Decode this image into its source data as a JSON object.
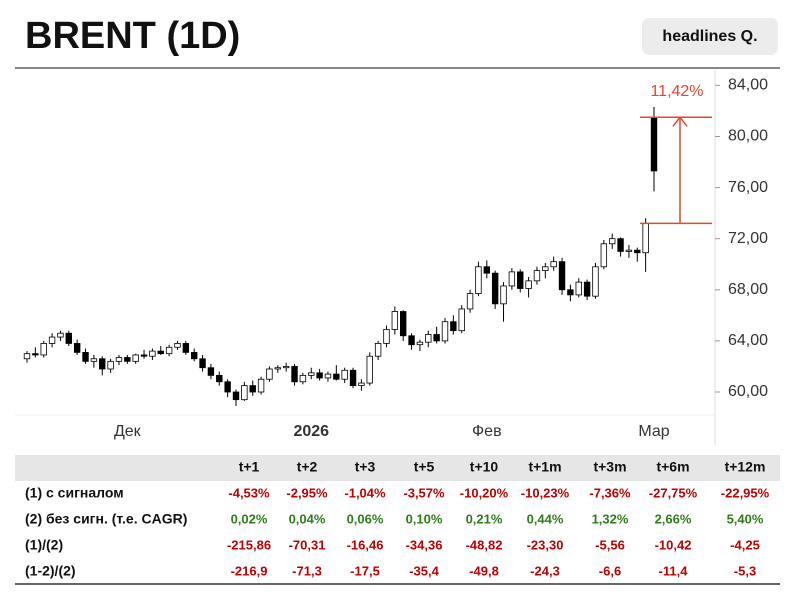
{
  "header": {
    "title": "BRENT (1D)",
    "badge": "headlines Q."
  },
  "chart_data": {
    "type": "candlestick",
    "categories": [
      null,
      null,
      null,
      null,
      null,
      null,
      null,
      null,
      null,
      null,
      null,
      null,
      "Дек",
      null,
      null,
      null,
      null,
      null,
      null,
      null,
      null,
      null,
      null,
      null,
      null,
      null,
      null,
      null,
      null,
      null,
      null,
      null,
      null,
      null,
      "2026",
      null,
      null,
      null,
      null,
      null,
      null,
      null,
      null,
      null,
      null,
      null,
      null,
      null,
      null,
      null,
      null,
      null,
      null,
      null,
      null,
      "Фев",
      null,
      null,
      null,
      null,
      null,
      null,
      null,
      null,
      null,
      null,
      null,
      null,
      null,
      null,
      null,
      null,
      null,
      null,
      null,
      "Мар"
    ],
    "open": [
      62.6,
      63.0,
      62.9,
      63.8,
      64.3,
      64.6,
      63.8,
      63.1,
      62.4,
      62.6,
      61.8,
      62.4,
      62.7,
      62.4,
      62.9,
      62.8,
      63.2,
      63.0,
      63.5,
      63.8,
      63.1,
      62.6,
      61.9,
      61.3,
      60.8,
      60.0,
      59.4,
      60.5,
      60.0,
      61.0,
      61.8,
      61.9,
      62.0,
      60.8,
      61.3,
      61.5,
      61.1,
      61.4,
      61.0,
      61.7,
      60.5,
      60.7,
      62.8,
      63.8,
      64.9,
      66.3,
      64.4,
      63.7,
      63.9,
      64.5,
      64.0,
      65.5,
      64.8,
      66.5,
      67.7,
      69.8,
      69.3,
      66.9,
      68.3,
      69.4,
      68.1,
      68.7,
      69.5,
      69.8,
      70.2,
      68.0,
      67.6,
      68.6,
      67.5,
      69.8,
      71.6,
      72.0,
      71.0,
      71.1,
      70.9,
      81.5
    ],
    "high": [
      63.2,
      63.5,
      64.0,
      64.6,
      64.8,
      64.8,
      64.1,
      63.4,
      62.9,
      62.8,
      62.6,
      62.9,
      62.9,
      63.0,
      63.3,
      63.4,
      63.6,
      63.7,
      64.0,
      64.0,
      63.4,
      62.9,
      62.2,
      61.6,
      61.0,
      60.2,
      60.8,
      60.9,
      61.2,
      62.0,
      62.1,
      62.3,
      62.2,
      61.5,
      61.9,
      61.8,
      61.6,
      62.1,
      61.9,
      61.9,
      61.0,
      63.1,
      64.0,
      65.2,
      66.7,
      66.4,
      64.6,
      64.1,
      64.8,
      65.1,
      65.8,
      66.0,
      66.8,
      68.0,
      70.2,
      70.3,
      69.5,
      68.6,
      69.7,
      69.6,
      69.0,
      69.8,
      70.1,
      70.6,
      70.5,
      68.4,
      68.9,
      68.8,
      70.1,
      71.9,
      72.4,
      72.1,
      71.5,
      71.3,
      73.6,
      82.3
    ],
    "low": [
      62.3,
      62.7,
      62.7,
      63.5,
      64.0,
      63.6,
      62.9,
      62.2,
      61.9,
      61.3,
      61.5,
      62.1,
      62.2,
      62.2,
      62.6,
      62.5,
      62.9,
      62.8,
      63.3,
      62.9,
      62.4,
      61.6,
      61.0,
      60.5,
      59.6,
      58.9,
      59.3,
      59.7,
      59.8,
      60.8,
      61.5,
      61.6,
      60.5,
      60.6,
      61.0,
      60.9,
      60.8,
      60.9,
      60.7,
      60.3,
      60.1,
      60.5,
      62.5,
      63.5,
      64.5,
      64.0,
      63.3,
      63.2,
      63.5,
      63.8,
      63.8,
      64.5,
      64.6,
      66.2,
      67.5,
      68.9,
      66.5,
      65.5,
      68.0,
      67.8,
      67.4,
      68.4,
      68.9,
      69.5,
      67.6,
      67.1,
      67.4,
      67.2,
      67.3,
      69.6,
      71.2,
      70.6,
      70.5,
      70.2,
      69.4,
      75.7
    ],
    "close": [
      63.0,
      62.9,
      63.8,
      64.3,
      64.6,
      63.8,
      63.1,
      62.4,
      62.6,
      61.8,
      62.4,
      62.7,
      62.4,
      62.9,
      62.8,
      63.2,
      63.0,
      63.5,
      63.8,
      63.1,
      62.6,
      61.9,
      61.3,
      60.8,
      60.0,
      59.4,
      60.5,
      60.0,
      61.0,
      61.8,
      61.9,
      62.0,
      60.8,
      61.3,
      61.5,
      61.1,
      61.4,
      61.0,
      61.7,
      60.5,
      60.7,
      62.8,
      63.8,
      64.9,
      66.3,
      64.4,
      63.7,
      63.9,
      64.5,
      64.0,
      65.5,
      64.8,
      66.5,
      67.7,
      69.8,
      69.3,
      66.9,
      68.3,
      69.4,
      68.1,
      68.7,
      69.5,
      69.8,
      70.2,
      68.0,
      67.6,
      68.6,
      67.5,
      69.8,
      71.6,
      72.0,
      71.0,
      71.1,
      70.9,
      73.2,
      77.3
    ],
    "up_color": "#ffffff",
    "down_color": "#000000",
    "ylim": [
      58.2,
      85.2
    ],
    "yticks": [
      {
        "value": 60,
        "label": "60,00"
      },
      {
        "value": 64,
        "label": "64,00"
      },
      {
        "value": 68,
        "label": "68,00"
      },
      {
        "value": 72,
        "label": "72,00"
      },
      {
        "value": 76,
        "label": "76,00"
      },
      {
        "value": 80,
        "label": "80,00"
      },
      {
        "value": 84,
        "label": "84,00"
      }
    ],
    "grid": false,
    "annotation": {
      "text": "11,42%",
      "from": 73.2,
      "to": 81.5,
      "color": "#e8452c"
    }
  },
  "table": {
    "columns": [
      "t+1",
      "t+2",
      "t+3",
      "t+5",
      "t+10",
      "t+1m",
      "t+3m",
      "t+6m",
      "t+12m"
    ],
    "rows": [
      {
        "label": "(1) с сигналом",
        "color": "#c00000",
        "values": [
          "-4,53%",
          "-2,95%",
          "-1,04%",
          "-3,57%",
          "-10,20%",
          "-10,23%",
          "-7,36%",
          "-27,75%",
          "-22,95%"
        ]
      },
      {
        "label": "(2) без сигн. (т.е. CAGR)",
        "color": "#2e7d1a",
        "values": [
          "0,02%",
          "0,04%",
          "0,06%",
          "0,10%",
          "0,21%",
          "0,44%",
          "1,32%",
          "2,66%",
          "5,40%"
        ]
      },
      {
        "label": "(1)/(2)",
        "color": "#c00000",
        "values": [
          "-215,86",
          "-70,31",
          "-16,46",
          "-34,36",
          "-48,82",
          "-23,30",
          "-5,56",
          "-10,42",
          "-4,25"
        ]
      },
      {
        "label": "(1-2)/(2)",
        "color": "#c00000",
        "values": [
          "-216,9",
          "-71,3",
          "-17,5",
          "-35,4",
          "-49,8",
          "-24,3",
          "-6,6",
          "-11,4",
          "-5,3"
        ]
      }
    ]
  }
}
